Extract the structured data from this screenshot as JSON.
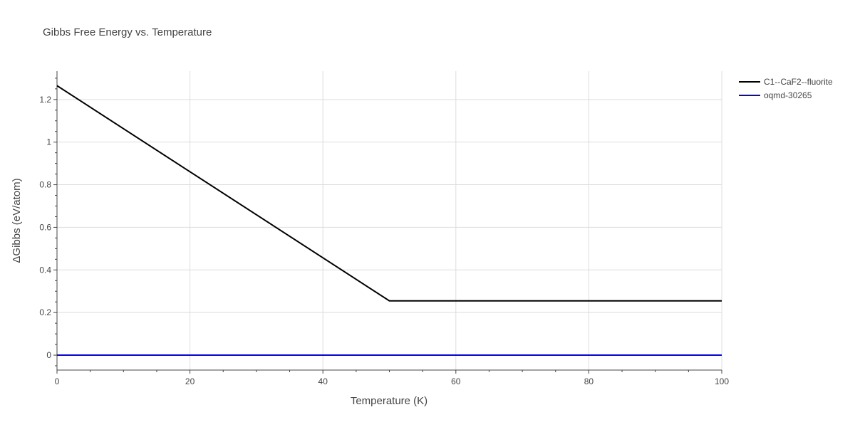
{
  "chart_data": {
    "type": "line",
    "title": "Gibbs Free Energy vs. Temperature",
    "xlabel": "Temperature (K)",
    "ylabel": "ΔGibbs (eV/atom)",
    "xlim": [
      0,
      100
    ],
    "ylim": [
      -0.07,
      1.333
    ],
    "x_ticks": [
      0,
      20,
      40,
      60,
      80,
      100
    ],
    "x_tick_labels": [
      "0",
      "20",
      "40",
      "60",
      "80",
      "100"
    ],
    "y_ticks": [
      0,
      0.2,
      0.4,
      0.6,
      0.8,
      1,
      1.2
    ],
    "y_tick_labels": [
      "0",
      "0.2",
      "0.4",
      "0.6",
      "0.8",
      "1",
      "1.2"
    ],
    "x_minor_step": 5,
    "y_minor_step": 0.05,
    "grid": true,
    "legend_position": "top-right",
    "series": [
      {
        "name": "C1--CaF2--fluorite",
        "color": "#000000",
        "x": [
          0,
          50,
          100
        ],
        "y": [
          1.265,
          0.255,
          0.255
        ]
      },
      {
        "name": "oqmd-30265",
        "color": "#0000ff",
        "x": [
          0,
          100
        ],
        "y": [
          0,
          0
        ]
      }
    ]
  }
}
